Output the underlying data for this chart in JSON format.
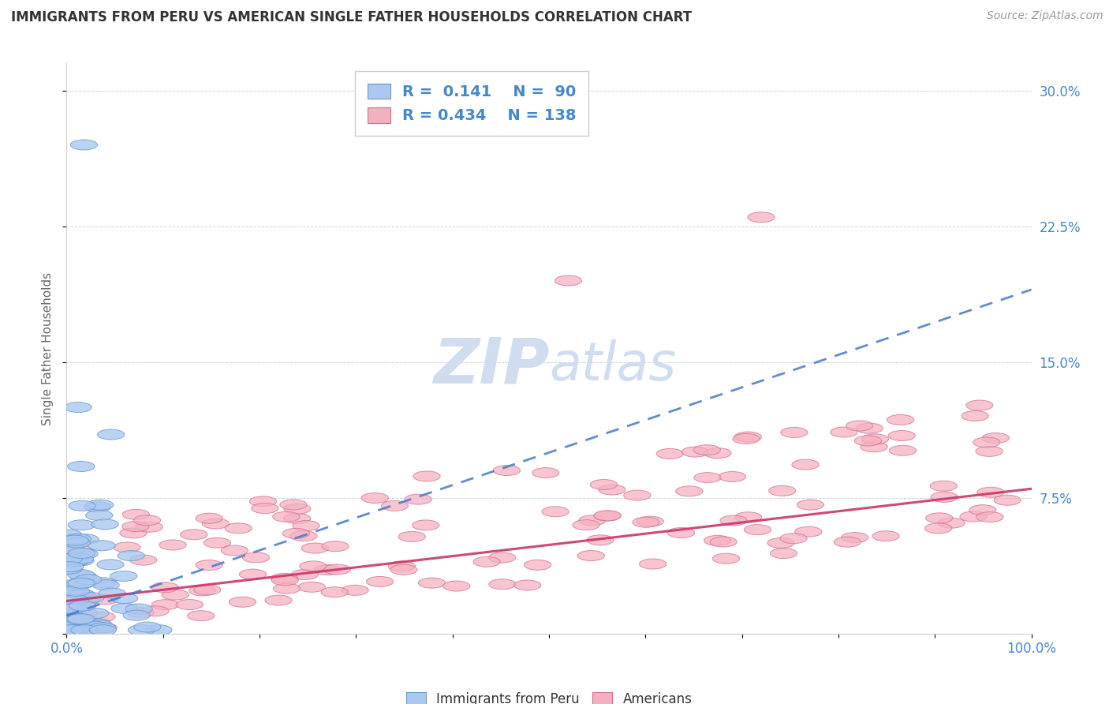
{
  "title": "IMMIGRANTS FROM PERU VS AMERICAN SINGLE FATHER HOUSEHOLDS CORRELATION CHART",
  "source": "Source: ZipAtlas.com",
  "ylabel": "Single Father Households",
  "R_peru": 0.141,
  "N_peru": 90,
  "R_american": 0.434,
  "N_american": 138,
  "xlim": [
    0.0,
    1.0
  ],
  "ylim": [
    0.0,
    0.315
  ],
  "yticks": [
    0.0,
    0.075,
    0.15,
    0.225,
    0.3
  ],
  "ytick_labels": [
    "",
    "7.5%",
    "15.0%",
    "22.5%",
    "30.0%"
  ],
  "blue_scatter_face": "#aac8f0",
  "blue_scatter_edge": "#6699cc",
  "pink_scatter_face": "#f5b0c0",
  "pink_scatter_edge": "#d07090",
  "blue_line_color": "#4477cc",
  "pink_line_color": "#cc3366",
  "title_color": "#333333",
  "axis_tick_color": "#4488cc",
  "watermark_color": "#d0ddf0",
  "background_color": "#ffffff",
  "grid_color": "#c8d4e8"
}
